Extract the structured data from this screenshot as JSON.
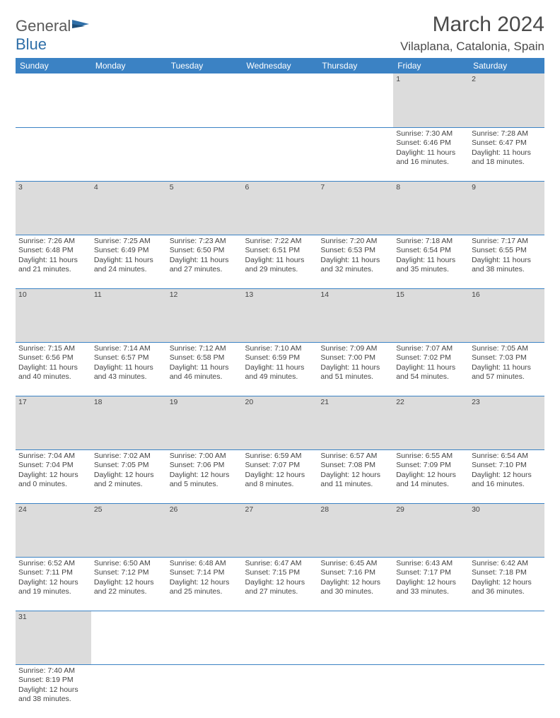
{
  "logo": {
    "general": "General",
    "blue": "Blue"
  },
  "title": "March 2024",
  "location": "Vilaplana, Catalonia, Spain",
  "colors": {
    "header_bg": "#3b82c4",
    "header_fg": "#ffffff",
    "daynum_bg": "#dcdcdc",
    "rule": "#3b82c4",
    "text": "#444444",
    "logo_gray": "#5a5a5a",
    "logo_blue": "#2f6fa8"
  },
  "days": [
    "Sunday",
    "Monday",
    "Tuesday",
    "Wednesday",
    "Thursday",
    "Friday",
    "Saturday"
  ],
  "weeks": [
    [
      null,
      null,
      null,
      null,
      null,
      {
        "n": "1",
        "t": "Sunrise: 7:30 AM\nSunset: 6:46 PM\nDaylight: 11 hours and 16 minutes."
      },
      {
        "n": "2",
        "t": "Sunrise: 7:28 AM\nSunset: 6:47 PM\nDaylight: 11 hours and 18 minutes."
      }
    ],
    [
      {
        "n": "3",
        "t": "Sunrise: 7:26 AM\nSunset: 6:48 PM\nDaylight: 11 hours and 21 minutes."
      },
      {
        "n": "4",
        "t": "Sunrise: 7:25 AM\nSunset: 6:49 PM\nDaylight: 11 hours and 24 minutes."
      },
      {
        "n": "5",
        "t": "Sunrise: 7:23 AM\nSunset: 6:50 PM\nDaylight: 11 hours and 27 minutes."
      },
      {
        "n": "6",
        "t": "Sunrise: 7:22 AM\nSunset: 6:51 PM\nDaylight: 11 hours and 29 minutes."
      },
      {
        "n": "7",
        "t": "Sunrise: 7:20 AM\nSunset: 6:53 PM\nDaylight: 11 hours and 32 minutes."
      },
      {
        "n": "8",
        "t": "Sunrise: 7:18 AM\nSunset: 6:54 PM\nDaylight: 11 hours and 35 minutes."
      },
      {
        "n": "9",
        "t": "Sunrise: 7:17 AM\nSunset: 6:55 PM\nDaylight: 11 hours and 38 minutes."
      }
    ],
    [
      {
        "n": "10",
        "t": "Sunrise: 7:15 AM\nSunset: 6:56 PM\nDaylight: 11 hours and 40 minutes."
      },
      {
        "n": "11",
        "t": "Sunrise: 7:14 AM\nSunset: 6:57 PM\nDaylight: 11 hours and 43 minutes."
      },
      {
        "n": "12",
        "t": "Sunrise: 7:12 AM\nSunset: 6:58 PM\nDaylight: 11 hours and 46 minutes."
      },
      {
        "n": "13",
        "t": "Sunrise: 7:10 AM\nSunset: 6:59 PM\nDaylight: 11 hours and 49 minutes."
      },
      {
        "n": "14",
        "t": "Sunrise: 7:09 AM\nSunset: 7:00 PM\nDaylight: 11 hours and 51 minutes."
      },
      {
        "n": "15",
        "t": "Sunrise: 7:07 AM\nSunset: 7:02 PM\nDaylight: 11 hours and 54 minutes."
      },
      {
        "n": "16",
        "t": "Sunrise: 7:05 AM\nSunset: 7:03 PM\nDaylight: 11 hours and 57 minutes."
      }
    ],
    [
      {
        "n": "17",
        "t": "Sunrise: 7:04 AM\nSunset: 7:04 PM\nDaylight: 12 hours and 0 minutes."
      },
      {
        "n": "18",
        "t": "Sunrise: 7:02 AM\nSunset: 7:05 PM\nDaylight: 12 hours and 2 minutes."
      },
      {
        "n": "19",
        "t": "Sunrise: 7:00 AM\nSunset: 7:06 PM\nDaylight: 12 hours and 5 minutes."
      },
      {
        "n": "20",
        "t": "Sunrise: 6:59 AM\nSunset: 7:07 PM\nDaylight: 12 hours and 8 minutes."
      },
      {
        "n": "21",
        "t": "Sunrise: 6:57 AM\nSunset: 7:08 PM\nDaylight: 12 hours and 11 minutes."
      },
      {
        "n": "22",
        "t": "Sunrise: 6:55 AM\nSunset: 7:09 PM\nDaylight: 12 hours and 14 minutes."
      },
      {
        "n": "23",
        "t": "Sunrise: 6:54 AM\nSunset: 7:10 PM\nDaylight: 12 hours and 16 minutes."
      }
    ],
    [
      {
        "n": "24",
        "t": "Sunrise: 6:52 AM\nSunset: 7:11 PM\nDaylight: 12 hours and 19 minutes."
      },
      {
        "n": "25",
        "t": "Sunrise: 6:50 AM\nSunset: 7:12 PM\nDaylight: 12 hours and 22 minutes."
      },
      {
        "n": "26",
        "t": "Sunrise: 6:48 AM\nSunset: 7:14 PM\nDaylight: 12 hours and 25 minutes."
      },
      {
        "n": "27",
        "t": "Sunrise: 6:47 AM\nSunset: 7:15 PM\nDaylight: 12 hours and 27 minutes."
      },
      {
        "n": "28",
        "t": "Sunrise: 6:45 AM\nSunset: 7:16 PM\nDaylight: 12 hours and 30 minutes."
      },
      {
        "n": "29",
        "t": "Sunrise: 6:43 AM\nSunset: 7:17 PM\nDaylight: 12 hours and 33 minutes."
      },
      {
        "n": "30",
        "t": "Sunrise: 6:42 AM\nSunset: 7:18 PM\nDaylight: 12 hours and 36 minutes."
      }
    ],
    [
      {
        "n": "31",
        "t": "Sunrise: 7:40 AM\nSunset: 8:19 PM\nDaylight: 12 hours and 38 minutes."
      },
      null,
      null,
      null,
      null,
      null,
      null
    ]
  ]
}
